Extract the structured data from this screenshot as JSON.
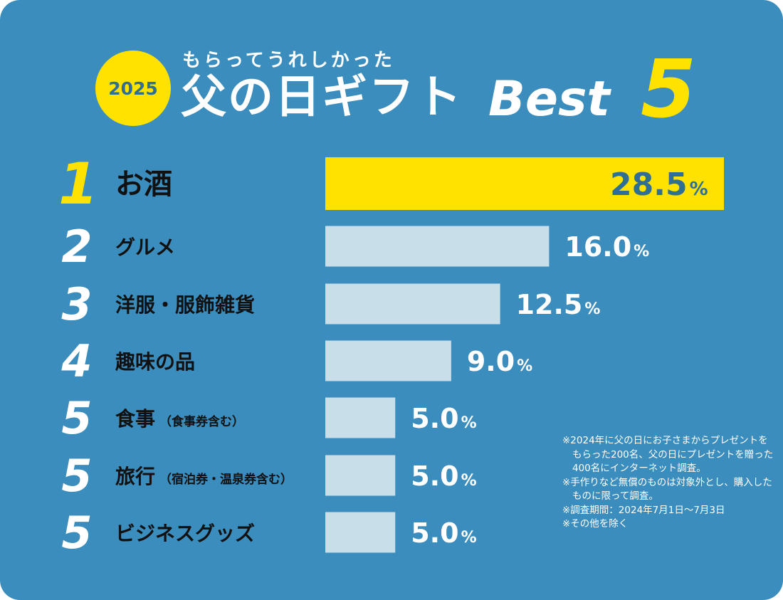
{
  "header": {
    "year": "2025",
    "subtitle": "もらってうれしかった",
    "title_main": "父の日ギフト",
    "title_best": "Best",
    "title_five": "5"
  },
  "colors": {
    "background": "#3b8dbd",
    "top_bar": "#ffe200",
    "other_bars": "#c8dfea",
    "rank_top": "#ffe200",
    "rank_other": "#ffffff",
    "top_value_text": "#2f6f95",
    "label_text": "#111111"
  },
  "chart_data": {
    "type": "bar",
    "orientation": "horizontal",
    "title": "父の日ギフト Best5",
    "unit": "%",
    "xlim": [
      0,
      28.5
    ],
    "ranks": [
      "1",
      "2",
      "3",
      "4",
      "5",
      "5",
      "5"
    ],
    "categories": [
      "お酒",
      "グルメ",
      "洋服・服飾雑貨",
      "趣味の品",
      "食事",
      "旅行",
      "ビジネスグッズ"
    ],
    "category_notes": [
      "",
      "",
      "",
      "",
      "（食事券含む）",
      "（宿泊券・温泉券含む）",
      ""
    ],
    "values": [
      28.5,
      16.0,
      12.5,
      9.0,
      5.0,
      5.0,
      5.0
    ],
    "value_labels": [
      "28.5",
      "16.0",
      "12.5",
      "9.0",
      "5.0",
      "5.0",
      "5.0"
    ]
  },
  "notes": [
    "※2024年に父の日にお子さまからプレゼントをもらった200名、父の日にプレゼントを贈った400名にインターネット調査。",
    "※手作りなど無償のものは対象外とし、購入したものに限って調査。",
    "※調査期間：2024年7月1日〜7月3日",
    "※その他を除く"
  ]
}
